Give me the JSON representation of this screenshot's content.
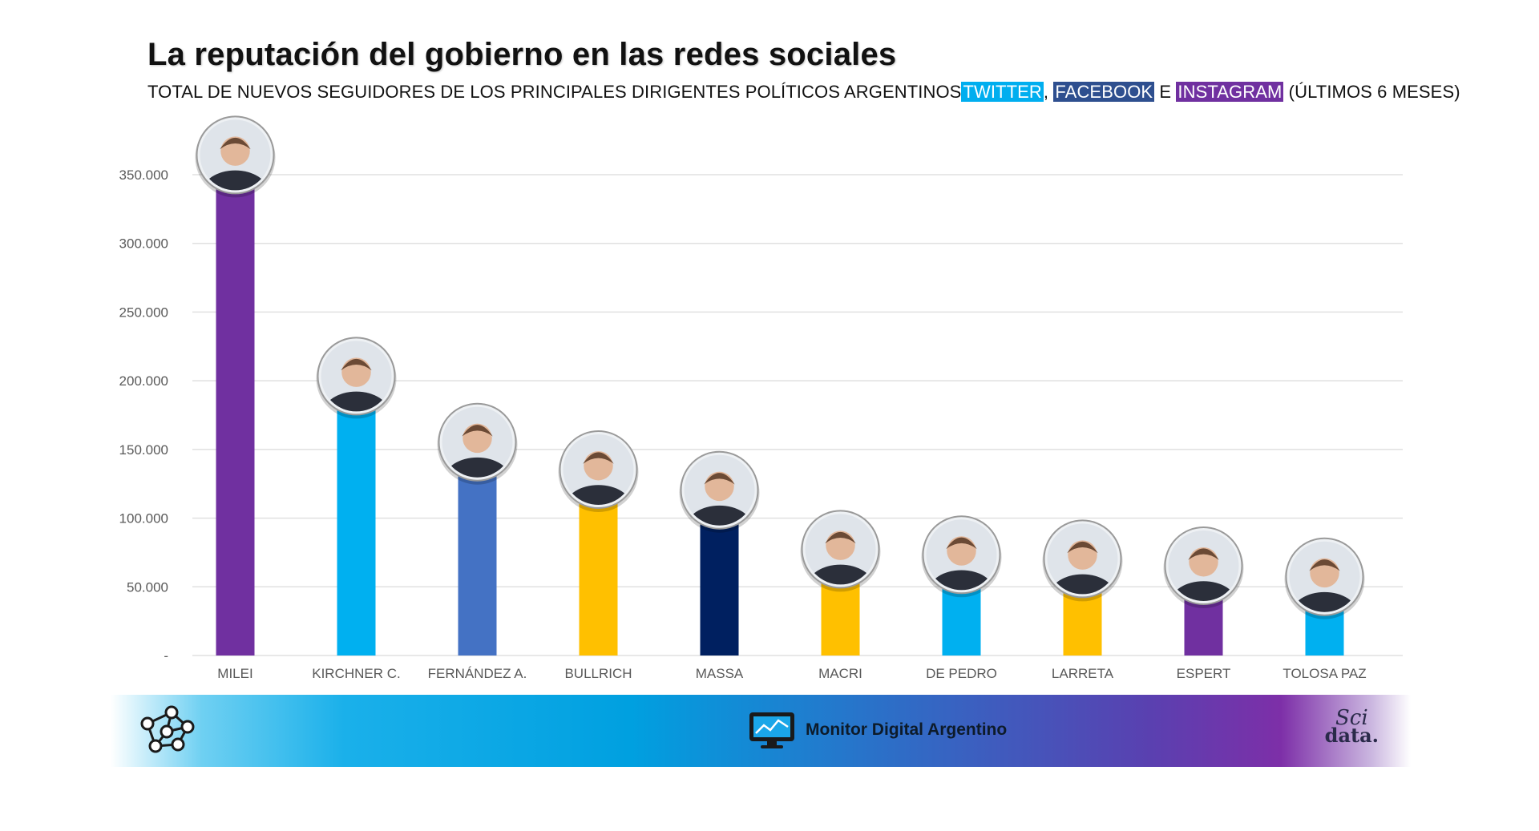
{
  "header": {
    "title": "La reputación del gobierno en las redes sociales",
    "subtitle_prefix": "TOTAL DE NUEVOS SEGUIDORES DE LOS PRINCIPALES DIRIGENTES POLÍTICOS ARGENTINOS",
    "network_twitter": "TWITTER",
    "separator_comma": ",",
    "network_facebook": "FACEBOOK",
    "separator_e": " E ",
    "network_instagram": "INSTAGRAM",
    "subtitle_suffix": " (ÚLTIMOS 6 MESES)"
  },
  "colors": {
    "twitter": "#00aeef",
    "facebook": "#2e4f8f",
    "instagram": "#7030a0",
    "grid": "#e0e0e0",
    "axis_text": "#595959"
  },
  "footer": {
    "brand": "Monitor Digital Argentino",
    "sci_line1": "Sci",
    "sci_line2": "data.",
    "network_icon": "network-nodes-icon",
    "monitor_icon": "monitor-chart-icon"
  },
  "chart_data": {
    "type": "bar",
    "categories": [
      "MILEI",
      "KIRCHNER C.",
      "FERNÁNDEZ A.",
      "BULLRICH",
      "MASSA",
      "MACRI",
      "DE PEDRO",
      "LARRETA",
      "ESPERT",
      "TOLOSA PAZ"
    ],
    "values": [
      341000,
      180000,
      132000,
      112000,
      97000,
      54000,
      50000,
      47000,
      42000,
      34000
    ],
    "bar_colors": [
      "#7030a0",
      "#00b0f0",
      "#4472c4",
      "#ffc000",
      "#002060",
      "#ffc000",
      "#00b0f0",
      "#ffc000",
      "#7030a0",
      "#00b0f0"
    ],
    "ylim": [
      0,
      350000
    ],
    "yticks": [
      0,
      50000,
      100000,
      150000,
      200000,
      250000,
      300000,
      350000
    ],
    "ytick_labels": [
      "-",
      "50.000",
      "100.000",
      "150.000",
      "200.000",
      "250.000",
      "300.000",
      "350.000"
    ],
    "grid": true,
    "markers": "circular portrait photo above each bar",
    "xlabel": "",
    "ylabel": ""
  }
}
